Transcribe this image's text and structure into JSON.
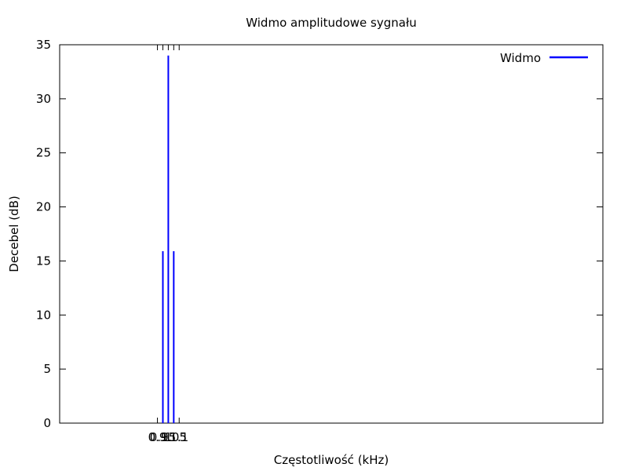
{
  "chart_data": {
    "type": "bar",
    "title": "Widmo amplitudowe sygnału",
    "xlabel": "Częstotliwość (kHz)",
    "ylabel": "Decebel (dB)",
    "xlim": [
      0.0,
      5.0
    ],
    "ylim": [
      0,
      35
    ],
    "yticks": [
      0,
      5,
      10,
      15,
      20,
      25,
      30,
      35
    ],
    "xtick_labels": [
      "0.9",
      "0.95",
      "1",
      "1.05",
      "1.1"
    ],
    "xticks": [
      0.9,
      0.95,
      1.0,
      1.05,
      1.1
    ],
    "grid": false,
    "legend_position": "top-right",
    "series": [
      {
        "name": "Widmo",
        "color": "#0000ff",
        "x": [
          0.95,
          1.0,
          1.05
        ],
        "values": [
          15.9,
          34.0,
          15.9
        ]
      }
    ]
  }
}
